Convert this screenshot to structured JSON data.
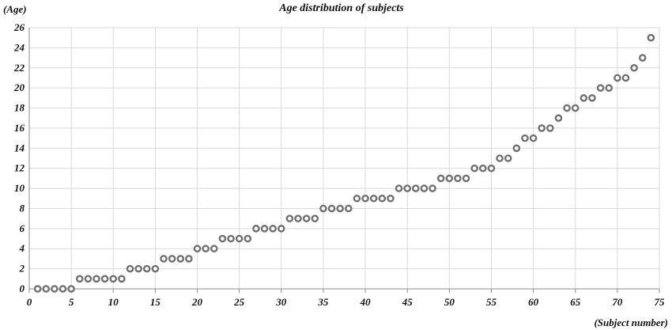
{
  "chart_data": {
    "type": "scatter",
    "title": "Age distribution of subjects",
    "ylabel": "(Age)",
    "xlabel": "(Subject number)",
    "xlim": [
      0,
      75
    ],
    "ylim": [
      0,
      26
    ],
    "x_ticks": [
      0,
      5,
      10,
      15,
      20,
      25,
      30,
      35,
      40,
      45,
      50,
      55,
      60,
      65,
      70,
      75
    ],
    "y_ticks": [
      0,
      2,
      4,
      6,
      8,
      10,
      12,
      14,
      16,
      18,
      20,
      22,
      24,
      26
    ],
    "grid": true,
    "marker_color": "#707070",
    "x": [
      1,
      2,
      3,
      4,
      5,
      6,
      7,
      8,
      9,
      10,
      11,
      12,
      13,
      14,
      15,
      16,
      17,
      18,
      19,
      20,
      21,
      22,
      23,
      24,
      25,
      26,
      27,
      28,
      29,
      30,
      31,
      32,
      33,
      34,
      35,
      36,
      37,
      38,
      39,
      40,
      41,
      42,
      43,
      44,
      45,
      46,
      47,
      48,
      49,
      50,
      51,
      52,
      53,
      54,
      55,
      56,
      57,
      58,
      59,
      60,
      61,
      62,
      63,
      64,
      65,
      66,
      67,
      68,
      69,
      70,
      71,
      72,
      73,
      74
    ],
    "y": [
      0,
      0,
      0,
      0,
      0,
      1,
      1,
      1,
      1,
      1,
      1,
      2,
      2,
      2,
      2,
      3,
      3,
      3,
      3,
      4,
      4,
      4,
      5,
      5,
      5,
      5,
      6,
      6,
      6,
      6,
      7,
      7,
      7,
      7,
      8,
      8,
      8,
      8,
      9,
      9,
      9,
      9,
      9,
      10,
      10,
      10,
      10,
      10,
      11,
      11,
      11,
      11,
      12,
      12,
      12,
      13,
      13,
      14,
      15,
      15,
      16,
      16,
      17,
      18,
      18,
      19,
      19,
      20,
      20,
      21,
      21,
      22,
      23,
      25
    ]
  }
}
